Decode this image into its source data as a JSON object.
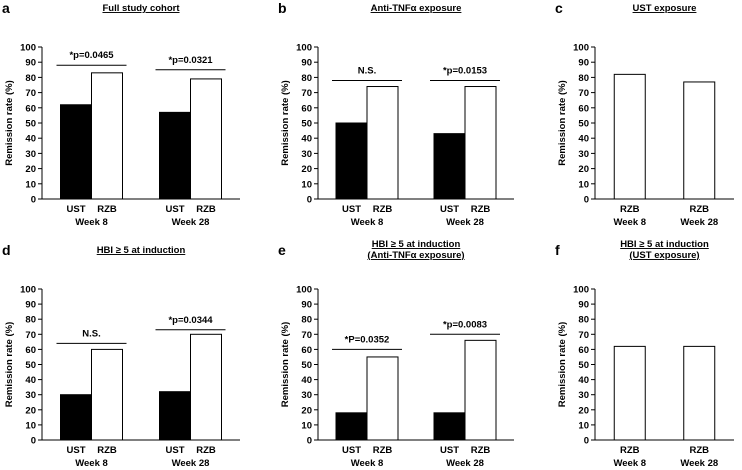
{
  "chart_data": [
    {
      "type": "bar",
      "panel": "a",
      "title_lines": [
        "Full study cohort"
      ],
      "ylabel": "Remission rate (%)",
      "ylim": [
        0,
        100
      ],
      "yticks": [
        0,
        10,
        20,
        30,
        40,
        50,
        60,
        70,
        80,
        90,
        100
      ],
      "groups": [
        {
          "week": "Week 8",
          "bars": [
            {
              "label": "UST",
              "value": 62,
              "color": "#000000"
            },
            {
              "label": "RZB",
              "value": 83,
              "color": "#ffffff"
            }
          ]
        },
        {
          "week": "Week 28",
          "bars": [
            {
              "label": "UST",
              "value": 57,
              "color": "#000000"
            },
            {
              "label": "RZB",
              "value": 79,
              "color": "#ffffff"
            }
          ]
        }
      ],
      "annotations": [
        {
          "group": 0,
          "text": "*p=0.0465",
          "level": 88
        },
        {
          "group": 1,
          "text": "*p=0.0321",
          "level": 85
        }
      ]
    },
    {
      "type": "bar",
      "panel": "b",
      "title_lines": [
        "Anti-TNFα exposure"
      ],
      "ylabel": "Remission rate (%)",
      "ylim": [
        0,
        100
      ],
      "yticks": [
        0,
        10,
        20,
        30,
        40,
        50,
        60,
        70,
        80,
        90,
        100
      ],
      "groups": [
        {
          "week": "Week 8",
          "bars": [
            {
              "label": "UST",
              "value": 50,
              "color": "#000000"
            },
            {
              "label": "RZB",
              "value": 74,
              "color": "#ffffff"
            }
          ]
        },
        {
          "week": "Week 28",
          "bars": [
            {
              "label": "UST",
              "value": 43,
              "color": "#000000"
            },
            {
              "label": "RZB",
              "value": 74,
              "color": "#ffffff"
            }
          ]
        }
      ],
      "annotations": [
        {
          "group": 0,
          "text": "N.S.",
          "level": 78
        },
        {
          "group": 1,
          "text": "*p=0.0153",
          "level": 78
        }
      ]
    },
    {
      "type": "bar",
      "panel": "c",
      "title_lines": [
        "UST exposure"
      ],
      "ylabel": "Remission rate (%)",
      "ylim": [
        0,
        100
      ],
      "yticks": [
        0,
        10,
        20,
        30,
        40,
        50,
        60,
        70,
        80,
        90,
        100
      ],
      "groups": [
        {
          "week": "Week 8",
          "bars": [
            {
              "label": "RZB",
              "value": 82,
              "color": "#ffffff"
            }
          ]
        },
        {
          "week": "Week 28",
          "bars": [
            {
              "label": "RZB",
              "value": 77,
              "color": "#ffffff"
            }
          ]
        }
      ],
      "annotations": []
    },
    {
      "type": "bar",
      "panel": "d",
      "title_lines": [
        "HBI ≥ 5 at induction"
      ],
      "ylabel": "Remission rate (%)",
      "ylim": [
        0,
        100
      ],
      "yticks": [
        0,
        10,
        20,
        30,
        40,
        50,
        60,
        70,
        80,
        90,
        100
      ],
      "groups": [
        {
          "week": "Week 8",
          "bars": [
            {
              "label": "UST",
              "value": 30,
              "color": "#000000"
            },
            {
              "label": "RZB",
              "value": 60,
              "color": "#ffffff"
            }
          ]
        },
        {
          "week": "Week 28",
          "bars": [
            {
              "label": "UST",
              "value": 32,
              "color": "#000000"
            },
            {
              "label": "RZB",
              "value": 70,
              "color": "#ffffff"
            }
          ]
        }
      ],
      "annotations": [
        {
          "group": 0,
          "text": "N.S.",
          "level": 64
        },
        {
          "group": 1,
          "text": "*p=0.0344",
          "level": 73
        }
      ]
    },
    {
      "type": "bar",
      "panel": "e",
      "title_lines": [
        "HBI ≥ 5 at induction",
        "(Anti-TNFα exposure)"
      ],
      "ylabel": "Remission rate (%)",
      "ylim": [
        0,
        100
      ],
      "yticks": [
        0,
        10,
        20,
        30,
        40,
        50,
        60,
        70,
        80,
        90,
        100
      ],
      "groups": [
        {
          "week": "Week 8",
          "bars": [
            {
              "label": "UST",
              "value": 18,
              "color": "#000000"
            },
            {
              "label": "RZB",
              "value": 55,
              "color": "#ffffff"
            }
          ]
        },
        {
          "week": "Week 28",
          "bars": [
            {
              "label": "UST",
              "value": 18,
              "color": "#000000"
            },
            {
              "label": "RZB",
              "value": 66,
              "color": "#ffffff"
            }
          ]
        }
      ],
      "annotations": [
        {
          "group": 0,
          "text": "*P=0.0352",
          "level": 60
        },
        {
          "group": 1,
          "text": "*p=0.0083",
          "level": 70
        }
      ]
    },
    {
      "type": "bar",
      "panel": "f",
      "title_lines": [
        "HBI ≥ 5 at induction",
        "(UST exposure)"
      ],
      "ylabel": "Remission rate (%)",
      "ylim": [
        0,
        100
      ],
      "yticks": [
        0,
        10,
        20,
        30,
        40,
        50,
        60,
        70,
        80,
        90,
        100
      ],
      "groups": [
        {
          "week": "Week 8",
          "bars": [
            {
              "label": "RZB",
              "value": 62,
              "color": "#ffffff"
            }
          ]
        },
        {
          "week": "Week 28",
          "bars": [
            {
              "label": "RZB",
              "value": 62,
              "color": "#ffffff"
            }
          ]
        }
      ],
      "annotations": []
    }
  ]
}
